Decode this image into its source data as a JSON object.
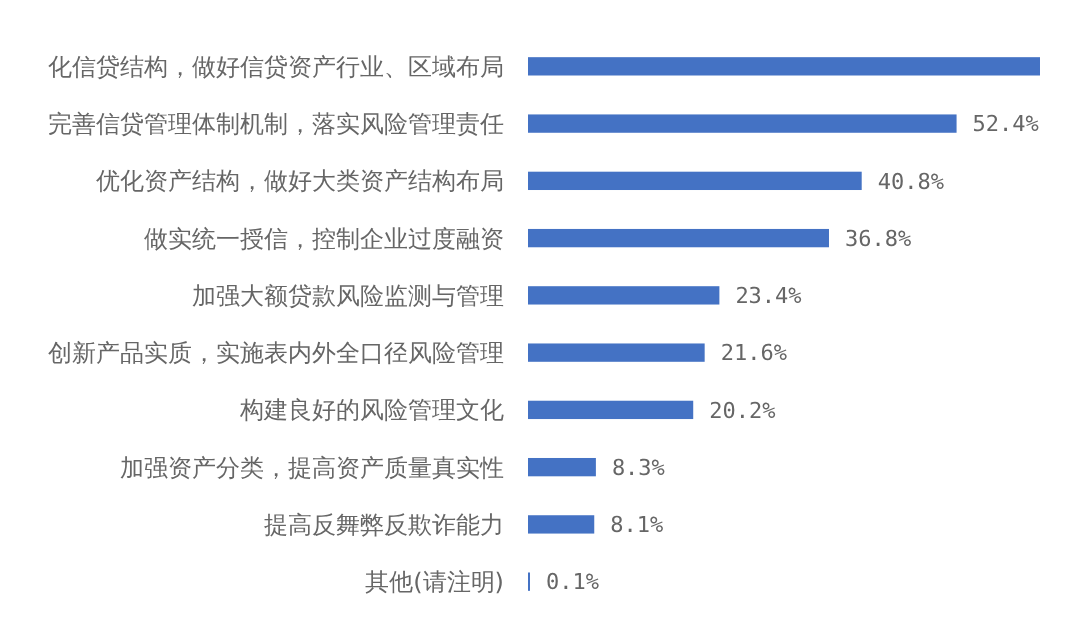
{
  "chart_data": {
    "type": "bar",
    "orientation": "horizontal",
    "color": "#4472c4",
    "categories": [
      "化信贷结构，做好信贷资产行业、区域布局",
      "完善信贷管理体制机制，落实风险管理责任",
      "优化资产结构，做好大类资产结构布局",
      "做实统一授信，控制企业过度融资",
      "加强大额贷款风险监测与管理",
      "创新产品实质，实施表内外全口径风险管理",
      "构建良好的风险管理文化",
      "加强资产分类，提高资产质量真实性",
      "提高反舞弊反欺诈能力",
      "其他(请注明)"
    ],
    "values": [
      62.6,
      52.4,
      40.8,
      36.8,
      23.4,
      21.6,
      20.2,
      8.3,
      8.1,
      0.1
    ],
    "value_labels": [
      null,
      "52.4%",
      "40.8%",
      "36.8%",
      "23.4%",
      "21.6%",
      "20.2%",
      "8.3%",
      "8.1%",
      "0.1%"
    ]
  }
}
